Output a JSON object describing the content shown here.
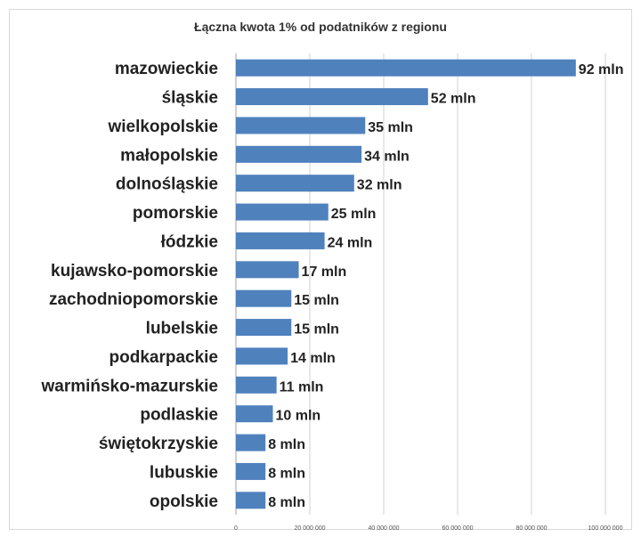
{
  "chart_data": {
    "type": "bar",
    "orientation": "horizontal",
    "title": "Łączna kwota 1% od podatników  z regionu",
    "categories": [
      "mazowieckie",
      "śląskie",
      "wielkopolskie",
      "małopolskie",
      "dolnośląskie",
      "pomorskie",
      "łódzkie",
      "kujawsko-pomorskie",
      "zachodniopomorskie",
      "lubelskie",
      "podkarpackie",
      "warmińsko-mazurskie",
      "podlaskie",
      "świętokrzyskie",
      "lubuskie",
      "opolskie"
    ],
    "values": [
      92000000,
      52000000,
      35000000,
      34000000,
      32000000,
      25000000,
      24000000,
      17000000,
      15000000,
      15000000,
      14000000,
      11000000,
      10000000,
      8000000,
      8000000,
      8000000
    ],
    "data_labels": [
      "92 mln",
      "52 mln",
      "35 mln",
      "34 mln",
      "32 mln",
      "25 mln",
      "24 mln",
      "17 mln",
      "15 mln",
      "15 mln",
      "14 mln",
      "11 mln",
      "10 mln",
      "8 mln",
      "8 mln",
      "8 mln"
    ],
    "xlim": [
      0,
      100000000
    ],
    "xticks": [
      0,
      20000000,
      40000000,
      60000000,
      80000000,
      100000000
    ],
    "xtick_labels": [
      "0",
      "20 000 000",
      "40 000 000",
      "60 000 000",
      "80 000 000",
      "100 000 000"
    ],
    "grid": true,
    "bar_color": "#4f81bd",
    "xlabel": "",
    "ylabel": ""
  }
}
